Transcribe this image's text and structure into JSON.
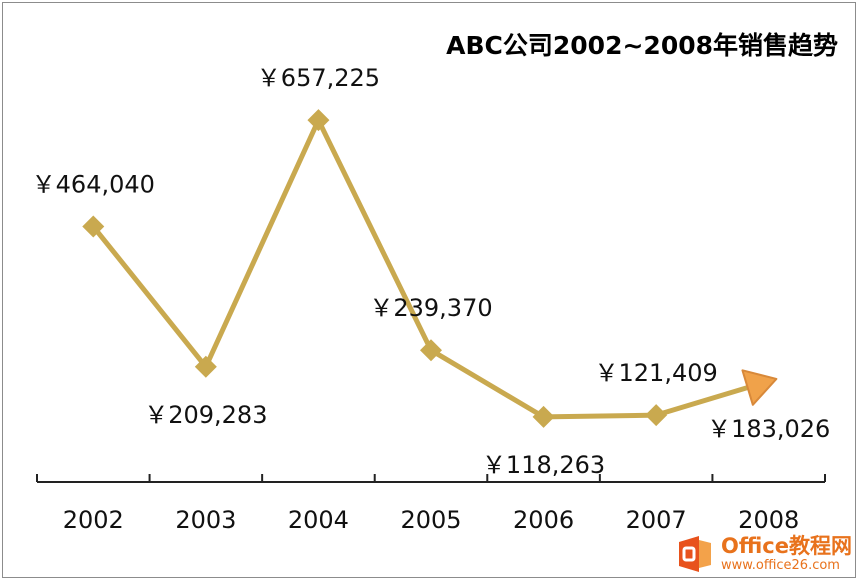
{
  "chart_data": {
    "type": "line",
    "title": "ABC公司2002~2008年销售趋势",
    "categories": [
      "2002",
      "2003",
      "2004",
      "2005",
      "2006",
      "2007",
      "2008"
    ],
    "values": [
      464040,
      209283,
      657225,
      239370,
      118263,
      121409,
      183026
    ],
    "data_labels": [
      "￥464,040",
      "￥209,283",
      "￥657,225",
      "￥239,370",
      "￥118,263",
      "￥121,409",
      "￥183,026"
    ],
    "ylim": [
      0,
      850000
    ],
    "grid": false,
    "legend": "none",
    "colors": {
      "line": "#c9a94f",
      "marker": "#c9a94f",
      "arrow": "#f0a24a",
      "axis": "#222222"
    }
  },
  "watermark": {
    "brand": "Office教程网",
    "url": "www.office26.com",
    "icon": "office-logo-icon",
    "color": "#e8721c"
  }
}
